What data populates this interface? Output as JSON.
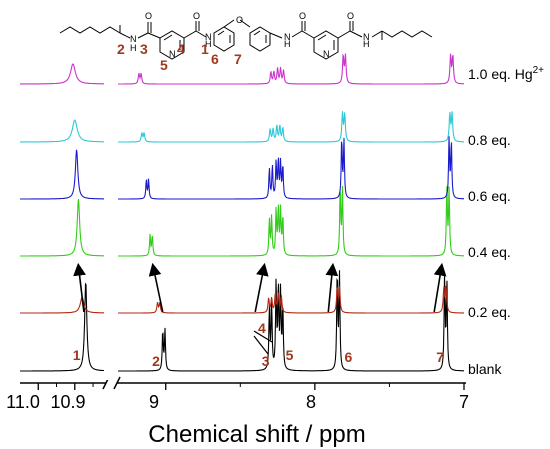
{
  "chart_data": {
    "type": "line",
    "title": "",
    "xlabel": "Chemical shift / ppm",
    "ylabel": "",
    "x_reversed": true,
    "axis_break": true,
    "segments": [
      {
        "name": "left",
        "xlim": [
          11.05,
          10.82
        ]
      },
      {
        "name": "right",
        "xlim": [
          9.32,
          7.0
        ]
      }
    ],
    "x_ticks": [
      "11.0",
      "10.9",
      "9",
      "8",
      "7"
    ],
    "series": [
      {
        "name": "blank",
        "color": "#000000",
        "peaks": [
          {
            "shift": 10.87,
            "height": 1.0,
            "width": 0.0035
          },
          {
            "shift": 9.02,
            "height": 0.45,
            "width": 0.004
          },
          {
            "shift": 9.005,
            "height": 0.45,
            "width": 0.004
          },
          {
            "shift": 8.305,
            "height": 0.7,
            "width": 0.004
          },
          {
            "shift": 8.29,
            "height": 0.75,
            "width": 0.004
          },
          {
            "shift": 8.26,
            "height": 0.95,
            "width": 0.004
          },
          {
            "shift": 8.245,
            "height": 0.9,
            "width": 0.004
          },
          {
            "shift": 8.23,
            "height": 0.85,
            "width": 0.004
          },
          {
            "shift": 8.215,
            "height": 0.7,
            "width": 0.004
          },
          {
            "shift": 7.85,
            "height": 1.1,
            "width": 0.004
          },
          {
            "shift": 7.835,
            "height": 1.05,
            "width": 0.004
          },
          {
            "shift": 7.13,
            "height": 1.05,
            "width": 0.004
          },
          {
            "shift": 7.115,
            "height": 1.0,
            "width": 0.004
          }
        ]
      },
      {
        "name": "0.2 eq.",
        "color": "#b22a14",
        "peaks": [
          {
            "shift": 10.88,
            "height": 0.35,
            "width": 0.006
          },
          {
            "shift": 9.055,
            "height": 0.22,
            "width": 0.005
          },
          {
            "shift": 9.04,
            "height": 0.22,
            "width": 0.005
          },
          {
            "shift": 8.31,
            "height": 0.32,
            "width": 0.005
          },
          {
            "shift": 8.29,
            "height": 0.32,
            "width": 0.005
          },
          {
            "shift": 8.265,
            "height": 0.42,
            "width": 0.005
          },
          {
            "shift": 8.245,
            "height": 0.42,
            "width": 0.005
          },
          {
            "shift": 8.225,
            "height": 0.36,
            "width": 0.005
          },
          {
            "shift": 7.85,
            "height": 0.55,
            "width": 0.005
          },
          {
            "shift": 7.835,
            "height": 0.55,
            "width": 0.005
          },
          {
            "shift": 7.135,
            "height": 0.55,
            "width": 0.005
          },
          {
            "shift": 7.12,
            "height": 0.55,
            "width": 0.005
          }
        ]
      },
      {
        "name": "0.4 eq.",
        "color": "#33cc1a",
        "peaks": [
          {
            "shift": 10.89,
            "height": 0.95,
            "width": 0.004
          },
          {
            "shift": 9.105,
            "height": 0.35,
            "width": 0.004
          },
          {
            "shift": 9.09,
            "height": 0.35,
            "width": 0.004
          },
          {
            "shift": 8.305,
            "height": 0.6,
            "width": 0.004
          },
          {
            "shift": 8.29,
            "height": 0.65,
            "width": 0.004
          },
          {
            "shift": 8.26,
            "height": 0.75,
            "width": 0.004
          },
          {
            "shift": 8.245,
            "height": 0.8,
            "width": 0.004
          },
          {
            "shift": 8.23,
            "height": 0.75,
            "width": 0.004
          },
          {
            "shift": 8.215,
            "height": 0.65,
            "width": 0.004
          },
          {
            "shift": 7.83,
            "height": 1.15,
            "width": 0.004
          },
          {
            "shift": 7.815,
            "height": 1.1,
            "width": 0.004
          },
          {
            "shift": 7.115,
            "height": 1.15,
            "width": 0.004
          },
          {
            "shift": 7.1,
            "height": 1.1,
            "width": 0.004
          }
        ]
      },
      {
        "name": "0.6 eq.",
        "color": "#1a1acc",
        "peaks": [
          {
            "shift": 10.895,
            "height": 0.9,
            "width": 0.004
          },
          {
            "shift": 9.13,
            "height": 0.35,
            "width": 0.004
          },
          {
            "shift": 9.115,
            "height": 0.35,
            "width": 0.004
          },
          {
            "shift": 8.305,
            "height": 0.55,
            "width": 0.004
          },
          {
            "shift": 8.285,
            "height": 0.6,
            "width": 0.004
          },
          {
            "shift": 8.26,
            "height": 0.65,
            "width": 0.004
          },
          {
            "shift": 8.245,
            "height": 0.7,
            "width": 0.004
          },
          {
            "shift": 8.23,
            "height": 0.65,
            "width": 0.004
          },
          {
            "shift": 8.215,
            "height": 0.6,
            "width": 0.004
          },
          {
            "shift": 7.82,
            "height": 1.1,
            "width": 0.004
          },
          {
            "shift": 7.805,
            "height": 1.05,
            "width": 0.004
          },
          {
            "shift": 7.1,
            "height": 1.1,
            "width": 0.004
          },
          {
            "shift": 7.085,
            "height": 1.05,
            "width": 0.004
          }
        ]
      },
      {
        "name": "0.8 eq.",
        "color": "#2ec9d6",
        "peaks": [
          {
            "shift": 10.9,
            "height": 0.55,
            "width": 0.008
          },
          {
            "shift": 9.16,
            "height": 0.22,
            "width": 0.005
          },
          {
            "shift": 9.145,
            "height": 0.22,
            "width": 0.005
          },
          {
            "shift": 8.3,
            "height": 0.32,
            "width": 0.005
          },
          {
            "shift": 8.28,
            "height": 0.32,
            "width": 0.005
          },
          {
            "shift": 8.255,
            "height": 0.4,
            "width": 0.005
          },
          {
            "shift": 8.235,
            "height": 0.4,
            "width": 0.005
          },
          {
            "shift": 8.215,
            "height": 0.35,
            "width": 0.005
          },
          {
            "shift": 7.815,
            "height": 0.7,
            "width": 0.005
          },
          {
            "shift": 7.8,
            "height": 0.7,
            "width": 0.005
          },
          {
            "shift": 7.095,
            "height": 0.7,
            "width": 0.005
          },
          {
            "shift": 7.08,
            "height": 0.7,
            "width": 0.005
          }
        ]
      },
      {
        "name": "1.0 eq. Hg2+",
        "color": "#cc33cc",
        "peaks": [
          {
            "shift": 10.905,
            "height": 0.5,
            "width": 0.008
          },
          {
            "shift": 9.18,
            "height": 0.25,
            "width": 0.005
          },
          {
            "shift": 9.165,
            "height": 0.25,
            "width": 0.005
          },
          {
            "shift": 8.295,
            "height": 0.3,
            "width": 0.005
          },
          {
            "shift": 8.275,
            "height": 0.3,
            "width": 0.005
          },
          {
            "shift": 8.25,
            "height": 0.38,
            "width": 0.005
          },
          {
            "shift": 8.23,
            "height": 0.38,
            "width": 0.005
          },
          {
            "shift": 8.21,
            "height": 0.33,
            "width": 0.005
          },
          {
            "shift": 7.81,
            "height": 0.7,
            "width": 0.005
          },
          {
            "shift": 7.795,
            "height": 0.7,
            "width": 0.005
          },
          {
            "shift": 7.09,
            "height": 0.7,
            "width": 0.005
          },
          {
            "shift": 7.075,
            "height": 0.7,
            "width": 0.005
          }
        ]
      }
    ],
    "trace_labels": [
      "blank",
      "0.2 eq.",
      "0.4 eq.",
      "0.6 eq.",
      "0.8 eq.",
      "1.0 eq. Hg"
    ],
    "trace_label_superscript": "2+",
    "peak_labels": [
      {
        "text": "1",
        "shift": 10.895
      },
      {
        "text": "2",
        "shift": 9.065
      },
      {
        "text": "3",
        "shift": 8.33
      },
      {
        "text": "4",
        "shift": 8.355
      },
      {
        "text": "5",
        "shift": 8.17
      },
      {
        "text": "6",
        "shift": 7.775
      },
      {
        "text": "7",
        "shift": 7.16
      }
    ],
    "arrows": [
      {
        "from_shift": 10.875,
        "to_shift": 10.89
      },
      {
        "from_shift": 9.02,
        "to_shift": 9.085
      },
      {
        "from_shift": 8.4,
        "to_shift": 8.34
      },
      {
        "from_shift": 7.91,
        "to_shift": 7.88
      },
      {
        "from_shift": 7.2,
        "to_shift": 7.15
      }
    ]
  },
  "structure": {
    "atoms": [
      "O",
      "N",
      "H",
      "N",
      "H",
      "N",
      "N",
      "N",
      "H",
      "N",
      "H",
      "O",
      "O",
      "O",
      "O"
    ],
    "number_labels": [
      "2",
      "3",
      "5",
      "4",
      "1",
      "6",
      "7"
    ]
  }
}
